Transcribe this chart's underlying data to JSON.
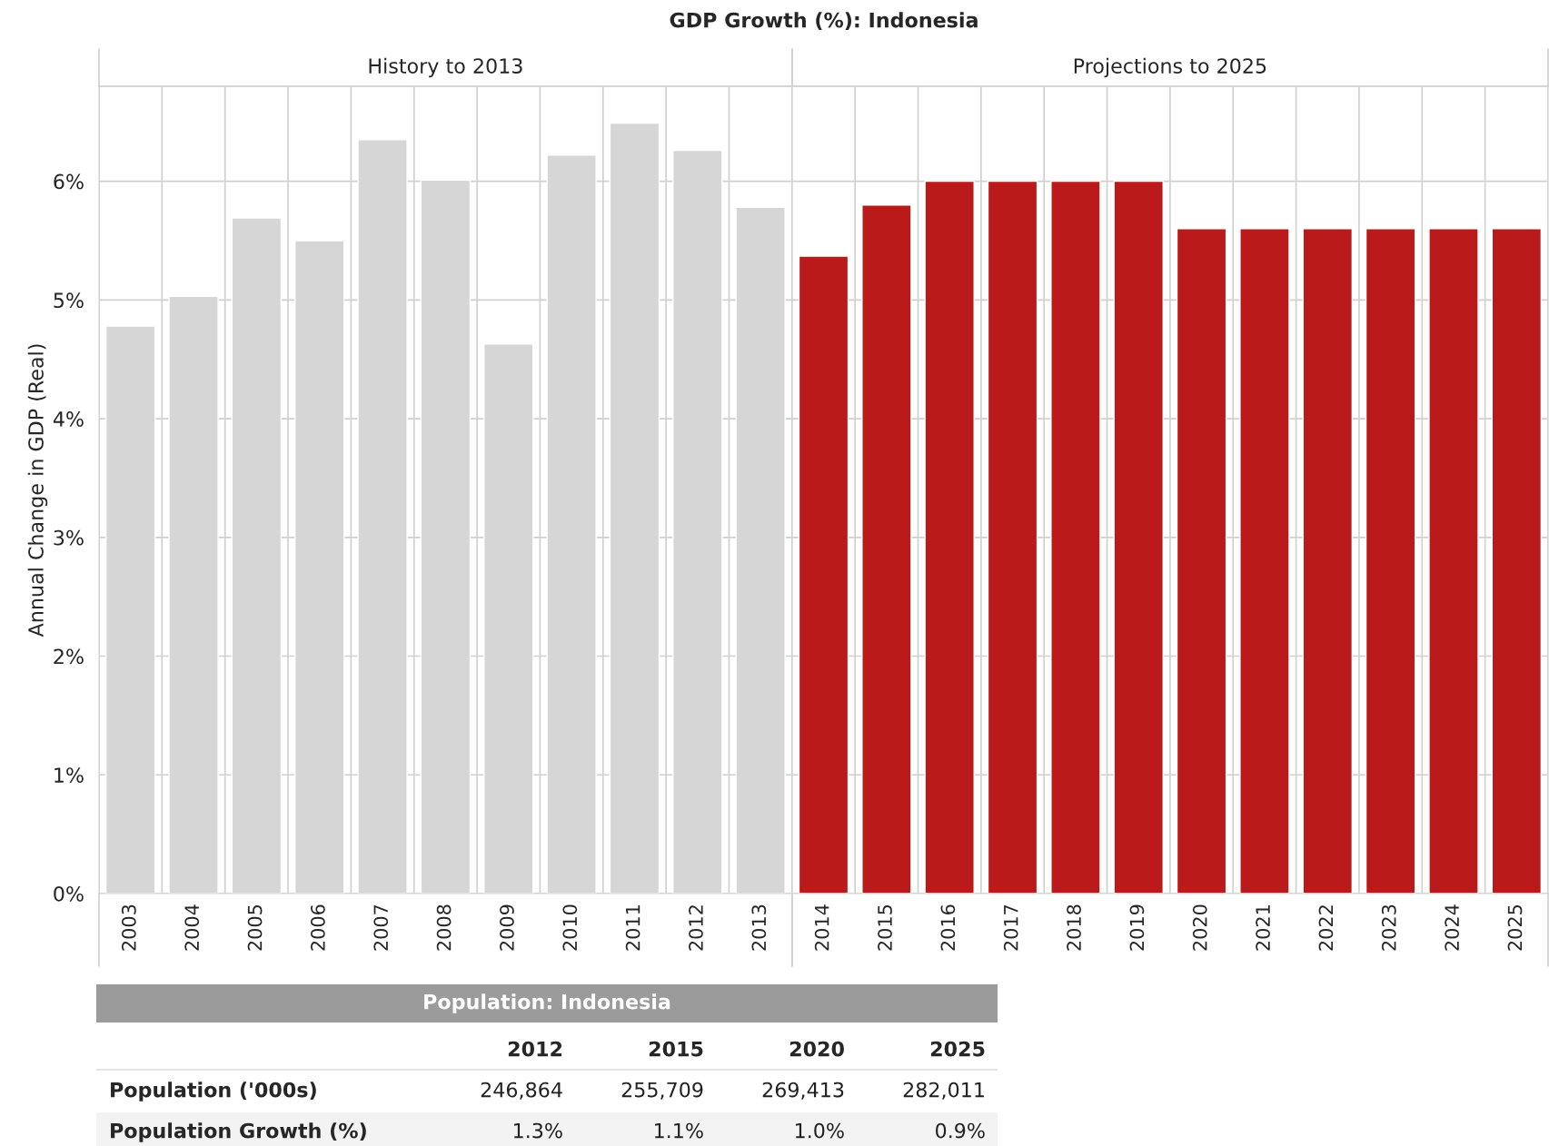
{
  "chart_data": [
    {
      "type": "bar",
      "title": "GDP Growth (%): Indonesia",
      "ylabel": "Annual Change in GDP (Real)",
      "categories": [
        "2003",
        "2004",
        "2005",
        "2006",
        "2007",
        "2008",
        "2009",
        "2010",
        "2011",
        "2012",
        "2013",
        "2014",
        "2015",
        "2016",
        "2017",
        "2018",
        "2019",
        "2020",
        "2021",
        "2022",
        "2023",
        "2024",
        "2025"
      ],
      "values": [
        4.78,
        5.03,
        5.69,
        5.5,
        6.35,
        6.01,
        4.63,
        6.22,
        6.49,
        6.26,
        5.78,
        5.37,
        5.8,
        6.0,
        6.0,
        6.0,
        6.0,
        5.6,
        5.6,
        5.6,
        5.6,
        5.6,
        5.6
      ],
      "colors": [
        "#d6d6d6",
        "#d6d6d6",
        "#d6d6d6",
        "#d6d6d6",
        "#d6d6d6",
        "#d6d6d6",
        "#d6d6d6",
        "#d6d6d6",
        "#d6d6d6",
        "#d6d6d6",
        "#d6d6d6",
        "#bb1a1a",
        "#bb1a1a",
        "#bb1a1a",
        "#bb1a1a",
        "#bb1a1a",
        "#bb1a1a",
        "#bb1a1a",
        "#bb1a1a",
        "#bb1a1a",
        "#bb1a1a",
        "#bb1a1a",
        "#bb1a1a"
      ],
      "ylim": [
        0,
        6.8
      ],
      "yticks": [
        {
          "value": 0,
          "label": "0%"
        },
        {
          "value": 1,
          "label": "1%"
        },
        {
          "value": 2,
          "label": "2%"
        },
        {
          "value": 3,
          "label": "3%"
        },
        {
          "value": 4,
          "label": "4%"
        },
        {
          "value": 5,
          "label": "5%"
        },
        {
          "value": 6,
          "label": "6%"
        }
      ],
      "annotations": [
        "History to 2013",
        "Projections to 2025"
      ],
      "grid": true
    },
    {
      "type": "other",
      "title": "Population: Indonesia",
      "categories": [
        "2012",
        "2015",
        "2020",
        "2025"
      ],
      "series": [
        {
          "name": "Population ('000s)",
          "values": [
            246864,
            255709,
            269413,
            282011
          ],
          "value_labels": [
            "246,864",
            "255,709",
            "269,413",
            "282,011"
          ]
        },
        {
          "name": "Population Growth (%)",
          "values": [
            1.3,
            1.1,
            1.0,
            0.9
          ],
          "value_labels": [
            "1.3%",
            "1.1%",
            "1.0%",
            "0.9%"
          ]
        }
      ]
    }
  ]
}
